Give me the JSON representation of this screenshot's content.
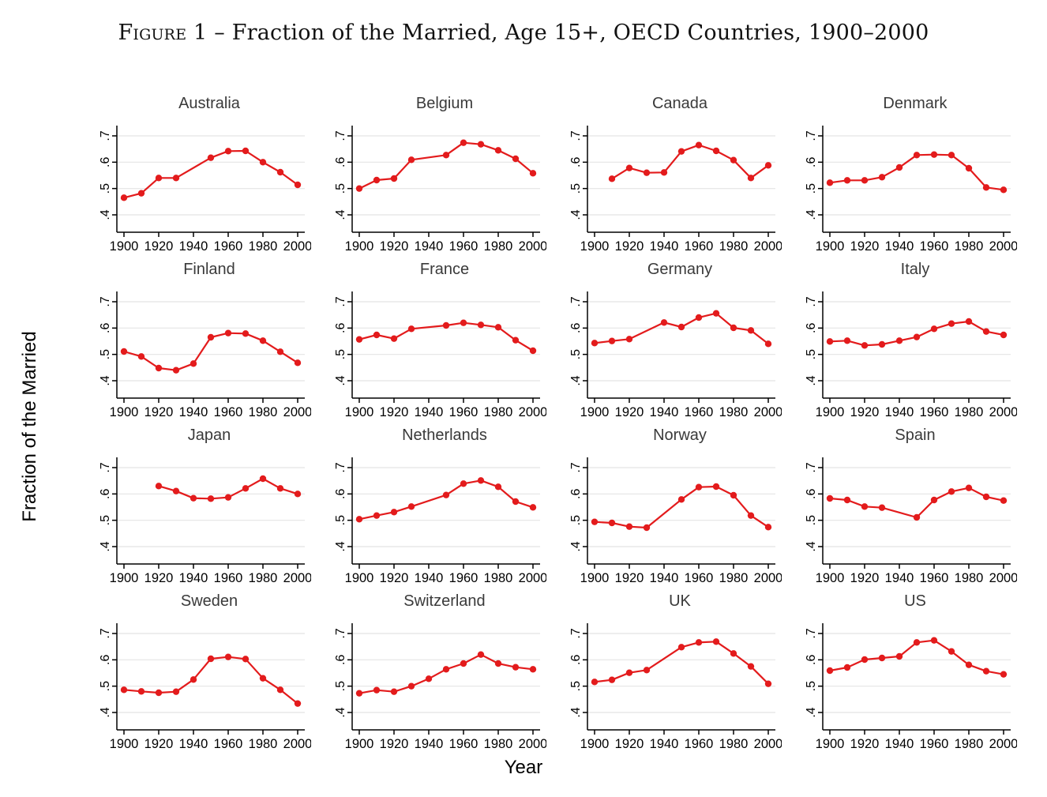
{
  "title": {
    "prefix": "Figure",
    "rest": " 1 – Fraction of the Married, Age 15+, OECD Countries, 1900–2000"
  },
  "chart_data": {
    "type": "line",
    "layout": "small-multiples-4x4",
    "title": "Figure 1 – Fraction of the Married, Age 15+, OECD Countries, 1900–2000",
    "xlabel": "Year",
    "ylabel": "Fraction of the Married",
    "xlim": [
      1900,
      2000
    ],
    "ylim": [
      0.4,
      0.7
    ],
    "xticks": [
      1900,
      1920,
      1940,
      1960,
      1980,
      2000
    ],
    "xtick_labels": [
      "1900",
      "1920",
      "1940",
      "1960",
      "1980",
      "2000"
    ],
    "yticks": [
      0.4,
      0.5,
      0.6,
      0.7
    ],
    "ytick_labels": [
      ".4",
      ".5",
      ".6",
      ".7"
    ],
    "grid": "horizontal-only",
    "legend": "none",
    "line_color": "#e31b1c",
    "grid_color": "#e4e4e4",
    "axis_color": "#000000",
    "panel_title_color": "#3a3a3a",
    "marker": "filled-circle",
    "panels": [
      {
        "title": "Australia",
        "years": [
          1900,
          1910,
          1920,
          1930,
          1950,
          1960,
          1970,
          1980,
          1990,
          2000
        ],
        "values": [
          0.465,
          0.482,
          0.54,
          0.54,
          0.617,
          0.642,
          0.643,
          0.6,
          0.562,
          0.514
        ]
      },
      {
        "title": "Belgium",
        "years": [
          1900,
          1910,
          1920,
          1930,
          1950,
          1960,
          1970,
          1980,
          1990,
          2000
        ],
        "values": [
          0.5,
          0.532,
          0.538,
          0.609,
          0.627,
          0.674,
          0.668,
          0.645,
          0.613,
          0.558
        ]
      },
      {
        "title": "Canada",
        "years": [
          1910,
          1920,
          1930,
          1940,
          1950,
          1960,
          1970,
          1980,
          1990,
          2000
        ],
        "values": [
          0.537,
          0.578,
          0.56,
          0.561,
          0.641,
          0.665,
          0.643,
          0.608,
          0.54,
          0.588
        ]
      },
      {
        "title": "Denmark",
        "years": [
          1900,
          1910,
          1920,
          1930,
          1940,
          1950,
          1960,
          1970,
          1980,
          1990,
          2000
        ],
        "values": [
          0.522,
          0.531,
          0.531,
          0.543,
          0.58,
          0.627,
          0.629,
          0.627,
          0.577,
          0.504,
          0.495
        ]
      },
      {
        "title": "Finland",
        "years": [
          1900,
          1910,
          1920,
          1930,
          1940,
          1950,
          1960,
          1970,
          1980,
          1990,
          2000
        ],
        "values": [
          0.511,
          0.492,
          0.448,
          0.44,
          0.465,
          0.565,
          0.581,
          0.579,
          0.552,
          0.51,
          0.468
        ]
      },
      {
        "title": "France",
        "years": [
          1900,
          1910,
          1920,
          1930,
          1950,
          1960,
          1970,
          1980,
          1990,
          2000
        ],
        "values": [
          0.557,
          0.574,
          0.56,
          0.597,
          0.61,
          0.62,
          0.612,
          0.603,
          0.554,
          0.514
        ]
      },
      {
        "title": "Germany",
        "years": [
          1900,
          1910,
          1920,
          1940,
          1950,
          1960,
          1970,
          1980,
          1990,
          2000
        ],
        "values": [
          0.543,
          0.551,
          0.558,
          0.621,
          0.604,
          0.64,
          0.656,
          0.601,
          0.591,
          0.54
        ]
      },
      {
        "title": "Italy",
        "years": [
          1900,
          1910,
          1920,
          1930,
          1940,
          1950,
          1960,
          1970,
          1980,
          1990,
          2000
        ],
        "values": [
          0.549,
          0.552,
          0.534,
          0.538,
          0.552,
          0.566,
          0.597,
          0.617,
          0.625,
          0.587,
          0.574
        ]
      },
      {
        "title": "Japan",
        "years": [
          1920,
          1930,
          1940,
          1950,
          1960,
          1970,
          1980,
          1990,
          2000
        ],
        "values": [
          0.63,
          0.611,
          0.584,
          0.582,
          0.587,
          0.621,
          0.658,
          0.621,
          0.6
        ]
      },
      {
        "title": "Netherlands",
        "years": [
          1900,
          1910,
          1920,
          1930,
          1950,
          1960,
          1970,
          1980,
          1990,
          2000
        ],
        "values": [
          0.504,
          0.518,
          0.531,
          0.552,
          0.596,
          0.639,
          0.651,
          0.627,
          0.571,
          0.549
        ]
      },
      {
        "title": "Norway",
        "years": [
          1900,
          1910,
          1920,
          1930,
          1950,
          1960,
          1970,
          1980,
          1990,
          2000
        ],
        "values": [
          0.494,
          0.49,
          0.476,
          0.472,
          0.579,
          0.626,
          0.628,
          0.595,
          0.518,
          0.474
        ]
      },
      {
        "title": "Spain",
        "years": [
          1900,
          1910,
          1920,
          1930,
          1950,
          1960,
          1970,
          1980,
          1990,
          2000
        ],
        "values": [
          0.583,
          0.577,
          0.552,
          0.548,
          0.511,
          0.577,
          0.609,
          0.623,
          0.589,
          0.575
        ]
      },
      {
        "title": "Sweden",
        "years": [
          1900,
          1910,
          1920,
          1930,
          1940,
          1950,
          1960,
          1970,
          1980,
          1990,
          2000
        ],
        "values": [
          0.486,
          0.48,
          0.475,
          0.479,
          0.525,
          0.604,
          0.611,
          0.603,
          0.53,
          0.486,
          0.434
        ]
      },
      {
        "title": "Switzerland",
        "years": [
          1900,
          1910,
          1920,
          1930,
          1940,
          1950,
          1960,
          1970,
          1980,
          1990,
          2000
        ],
        "values": [
          0.473,
          0.485,
          0.479,
          0.5,
          0.528,
          0.564,
          0.586,
          0.62,
          0.586,
          0.572,
          0.564
        ]
      },
      {
        "title": "UK",
        "years": [
          1900,
          1910,
          1920,
          1930,
          1950,
          1960,
          1970,
          1980,
          1990,
          2000
        ],
        "values": [
          0.516,
          0.524,
          0.551,
          0.561,
          0.648,
          0.666,
          0.669,
          0.624,
          0.575,
          0.509
        ]
      },
      {
        "title": "US",
        "years": [
          1900,
          1910,
          1920,
          1930,
          1940,
          1950,
          1960,
          1970,
          1980,
          1990,
          2000
        ],
        "values": [
          0.559,
          0.571,
          0.601,
          0.607,
          0.613,
          0.666,
          0.674,
          0.632,
          0.581,
          0.557,
          0.545
        ]
      }
    ]
  },
  "axes": {
    "x_label": "Year",
    "y_label": "Fraction of the Married"
  }
}
